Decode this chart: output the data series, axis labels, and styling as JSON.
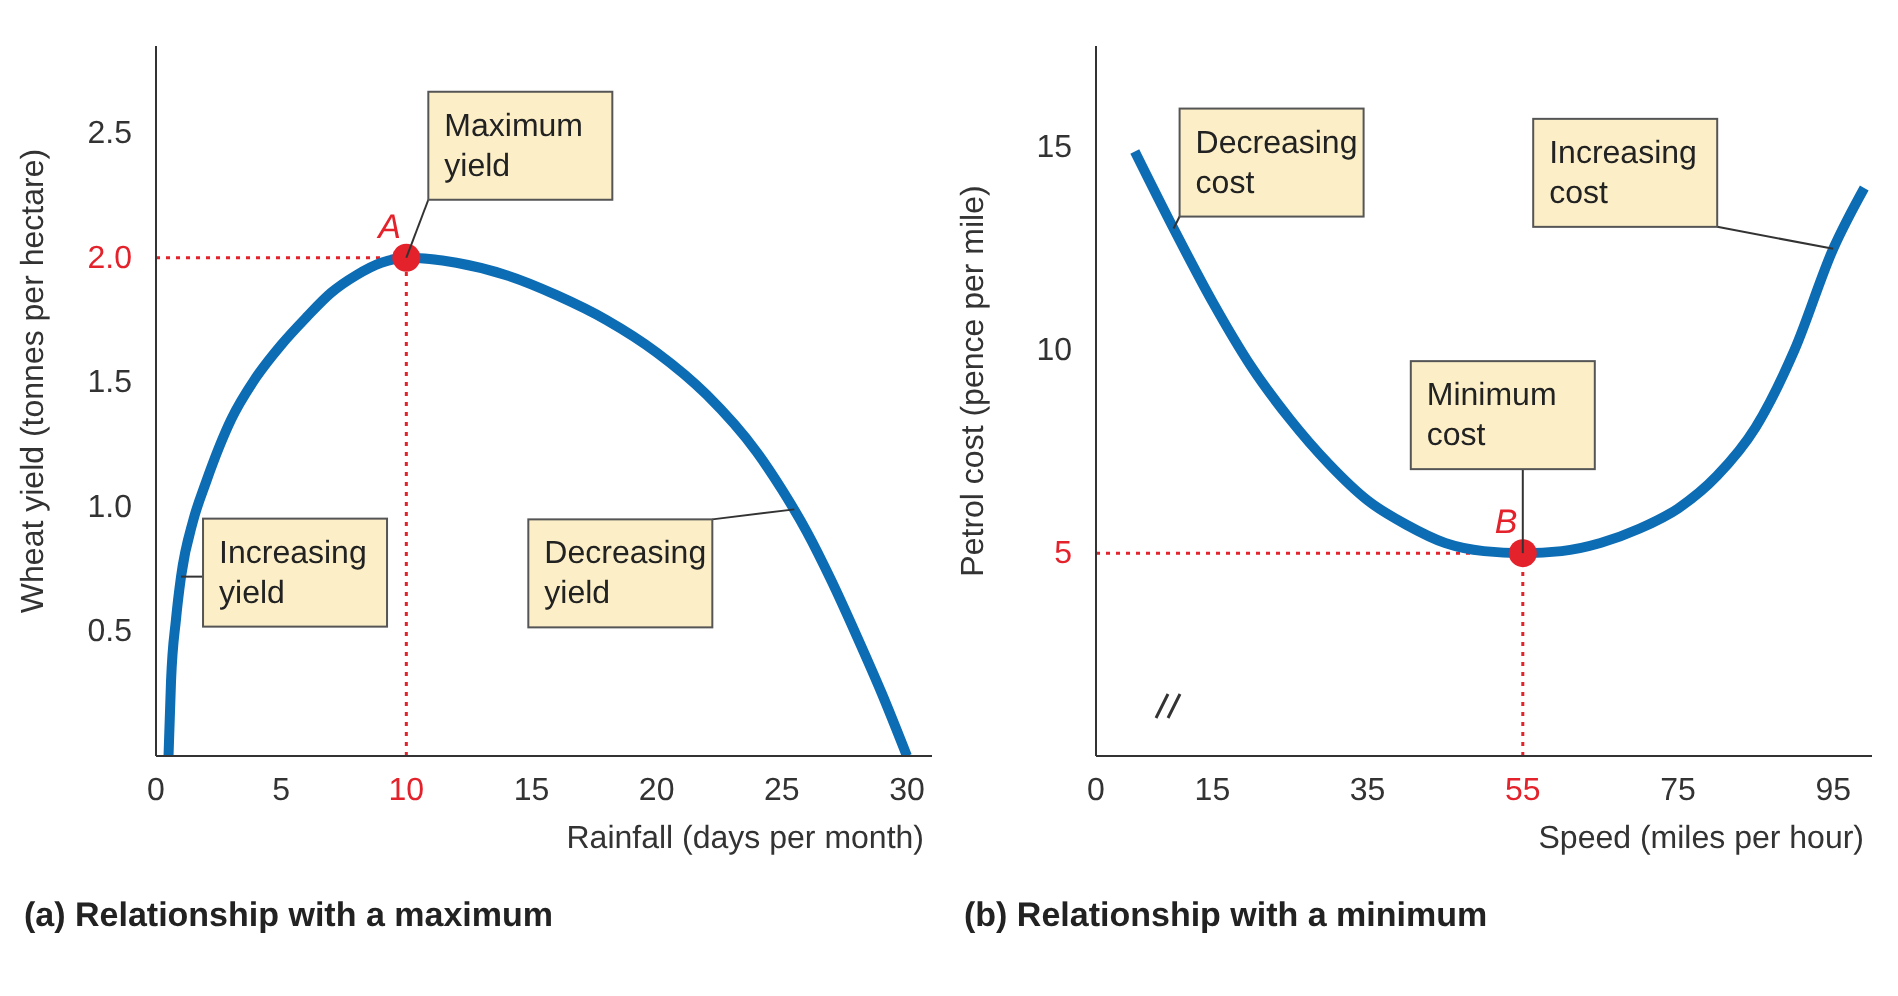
{
  "chart_data": [
    {
      "type": "line",
      "title": "(a) Relationship with a maximum",
      "xlabel": "Rainfall (days per month)",
      "ylabel": "Wheat yield (tonnes per hectare)",
      "x": [
        0.5,
        0.6,
        0.8,
        1,
        1.5,
        2,
        3,
        4,
        5,
        6,
        7,
        8,
        9,
        10,
        12,
        14,
        16,
        18,
        20,
        22,
        24,
        25,
        26,
        27,
        28,
        29,
        30
      ],
      "series": [
        {
          "color": "#0c6cb4",
          "values": [
            0,
            0.3,
            0.55,
            0.72,
            0.95,
            1.1,
            1.35,
            1.52,
            1.65,
            1.76,
            1.86,
            1.93,
            1.98,
            2.0,
            1.98,
            1.93,
            1.85,
            1.75,
            1.62,
            1.45,
            1.22,
            1.07,
            0.9,
            0.7,
            0.48,
            0.25,
            0
          ]
        },
        {
          "type": "scatter",
          "name": "A",
          "color": "#e3222b",
          "marker": "circle",
          "x": [
            10
          ],
          "values": [
            2.0
          ]
        }
      ],
      "xlim": [
        0,
        31
      ],
      "xticks": [
        0,
        5,
        10,
        15,
        20,
        25,
        30
      ],
      "ylim": [
        0,
        2.85
      ],
      "yticks": [
        0.5,
        {
          "value": 1,
          "label": "1.0"
        },
        1.5,
        {
          "value": 2,
          "label": "2.0"
        },
        2.5
      ],
      "ref_lines": [
        {
          "axis": "x",
          "value": 10,
          "color": "#e3222b",
          "line_style": "dotted"
        },
        {
          "axis": "y",
          "value": 2.0,
          "color": "#e3222b",
          "line_style": "dotted"
        }
      ],
      "annotations": [
        {
          "text": "Maximum yield",
          "x": 10,
          "y": 2.0
        },
        {
          "text": "Increasing yield",
          "x": 1,
          "y": 0.72
        },
        {
          "text": "Decreasing yield",
          "x": 25.5,
          "y": 0.99
        }
      ],
      "grid": false,
      "legend": false,
      "marker": "none",
      "line_style": "solid"
    },
    {
      "type": "line",
      "title": "(b) Relationship with a minimum",
      "xlabel": "Speed (miles per hour)",
      "ylabel": "Petrol cost (pence per mile)",
      "x": [
        5,
        10,
        15,
        20,
        25,
        30,
        35,
        40,
        45,
        50,
        55,
        60,
        65,
        70,
        75,
        80,
        85,
        90,
        95,
        99
      ],
      "series": [
        {
          "color": "#0c6cb4",
          "values": [
            14.9,
            13.0,
            11.2,
            9.6,
            8.3,
            7.2,
            6.3,
            5.7,
            5.25,
            5.05,
            5.0,
            5.05,
            5.25,
            5.6,
            6.1,
            6.9,
            8.1,
            10.0,
            12.5,
            14.0
          ]
        },
        {
          "type": "scatter",
          "name": "B",
          "color": "#e3222b",
          "marker": "circle",
          "x": [
            55
          ],
          "values": [
            5
          ]
        }
      ],
      "xlim": [
        0,
        100
      ],
      "xticks": [
        0,
        15,
        35,
        55,
        75,
        95
      ],
      "ylim": [
        0,
        17.5
      ],
      "yticks": [
        5,
        10,
        15
      ],
      "ref_lines": [
        {
          "axis": "x",
          "value": 55,
          "color": "#e3222b",
          "line_style": "dotted"
        },
        {
          "axis": "y",
          "value": 5,
          "color": "#e3222b",
          "line_style": "dotted"
        }
      ],
      "annotations": [
        {
          "text": "Decreasing cost",
          "x": 10,
          "y": 13.0
        },
        {
          "text": "Increasing cost",
          "x": 95,
          "y": 12.5
        },
        {
          "text": "Minimum cost",
          "x": 55,
          "y": 5
        }
      ],
      "grid": false,
      "legend": false,
      "marker": "none",
      "line_style": "solid"
    }
  ]
}
